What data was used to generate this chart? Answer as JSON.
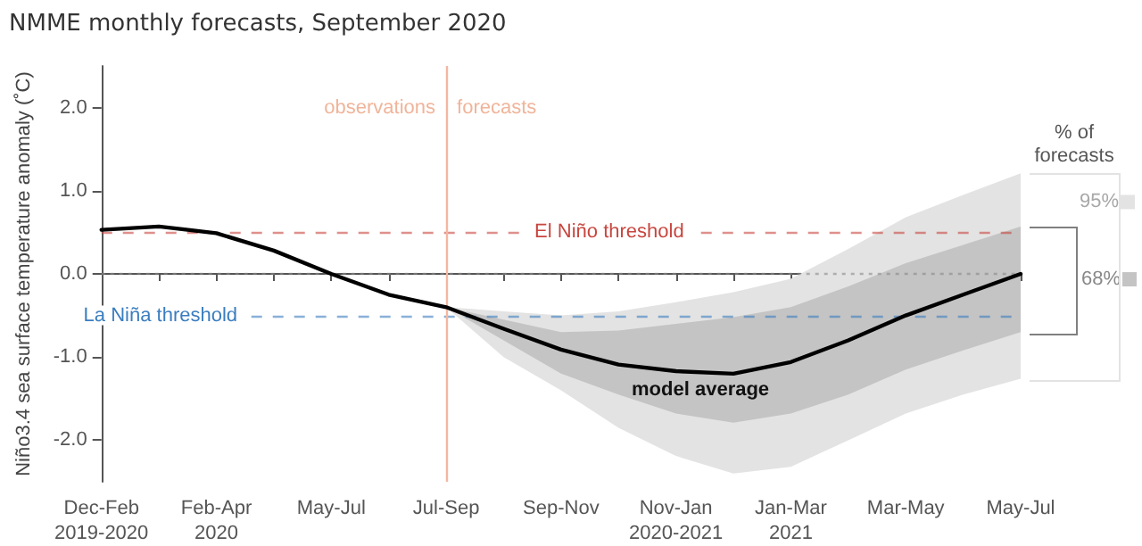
{
  "chart_data": {
    "type": "line",
    "title": "NMME monthly forecasts, September 2020",
    "ylabel": "Niño3.4 sea surface temperature anomaly (˚C)",
    "legend_title": "% of forecasts",
    "categories": [
      "Dec-Feb\n2019-2020",
      null,
      "Feb-Apr\n2020",
      null,
      "May-Jul",
      null,
      "Jul-Sep",
      null,
      "Sep-Nov",
      null,
      "Nov-Jan\n2020-2021",
      null,
      "Jan-Mar\n2021",
      null,
      "Mar-May",
      null,
      "May-Jul"
    ],
    "series": [
      {
        "name": "95%",
        "type": "area",
        "color": "#e3e3e3",
        "values": [
          null,
          null,
          null,
          null,
          null,
          null,
          null,
          null,
          null,
          null,
          null,
          null,
          null,
          null,
          null,
          null,
          null
        ],
        "lower": [
          null,
          null,
          null,
          null,
          null,
          null,
          -0.4,
          -1.0,
          -1.4,
          -1.85,
          -2.19,
          -2.4,
          -2.32,
          -2.0,
          -1.68,
          -1.45,
          -1.26
        ],
        "upper": [
          null,
          null,
          null,
          null,
          null,
          null,
          -0.4,
          -0.45,
          -0.5,
          -0.45,
          -0.34,
          -0.22,
          -0.06,
          0.3,
          0.68,
          0.95,
          1.21
        ]
      },
      {
        "name": "68%",
        "type": "area",
        "color": "#c4c4c4",
        "values": [
          null,
          null,
          null,
          null,
          null,
          null,
          null,
          null,
          null,
          null,
          null,
          null,
          null,
          null,
          null,
          null,
          null
        ],
        "lower": [
          null,
          null,
          null,
          null,
          null,
          null,
          -0.4,
          -0.8,
          -1.2,
          -1.45,
          -1.68,
          -1.79,
          -1.68,
          -1.45,
          -1.15,
          -0.92,
          -0.7
        ],
        "upper": [
          null,
          null,
          null,
          null,
          null,
          null,
          -0.4,
          -0.55,
          -0.7,
          -0.68,
          -0.6,
          -0.52,
          -0.4,
          -0.15,
          0.13,
          0.35,
          0.57
        ]
      },
      {
        "color": "#000000",
        "values": [
          0.53,
          0.57,
          0.49,
          0.28,
          0.0,
          -0.25,
          -0.4,
          -0.66,
          -0.91,
          -1.09,
          -1.17,
          -1.2,
          -1.06,
          -0.8,
          -0.5,
          -0.25,
          0.0
        ]
      }
    ],
    "ylim": [
      -2.5,
      2.5
    ],
    "yticks": [
      {
        "value": -2,
        "label": "-2.0"
      },
      {
        "value": -1,
        "label": "-1.0"
      },
      {
        "value": 0,
        "label": "0.0"
      },
      {
        "value": 1,
        "label": "1.0"
      },
      {
        "value": 2,
        "label": "2.0"
      }
    ],
    "ref_lines": [
      {
        "axis": "y",
        "value": 0.5,
        "label": "El Niño threshold",
        "color": "#c8463f",
        "line_style": "dashed"
      },
      {
        "axis": "y",
        "value": -0.5,
        "label": "La Niña threshold",
        "color": "#3a7dbf",
        "line_style": "dashed"
      },
      {
        "axis": "y",
        "value": 0,
        "label": null,
        "color": "#888888",
        "line_style": "dotted"
      },
      {
        "axis": "x",
        "value": "Jul-Sep",
        "label": null,
        "color": "#f4b7a0",
        "line_style": "solid"
      }
    ],
    "annotations": [
      {
        "text": "observations",
        "x": "Jul-Sep",
        "y": 2.0
      },
      {
        "text": "forecasts",
        "x": "Jul-Sep",
        "y": 2.0
      },
      "model average"
    ],
    "grid": false,
    "marker": "none",
    "line_style": "solid"
  }
}
